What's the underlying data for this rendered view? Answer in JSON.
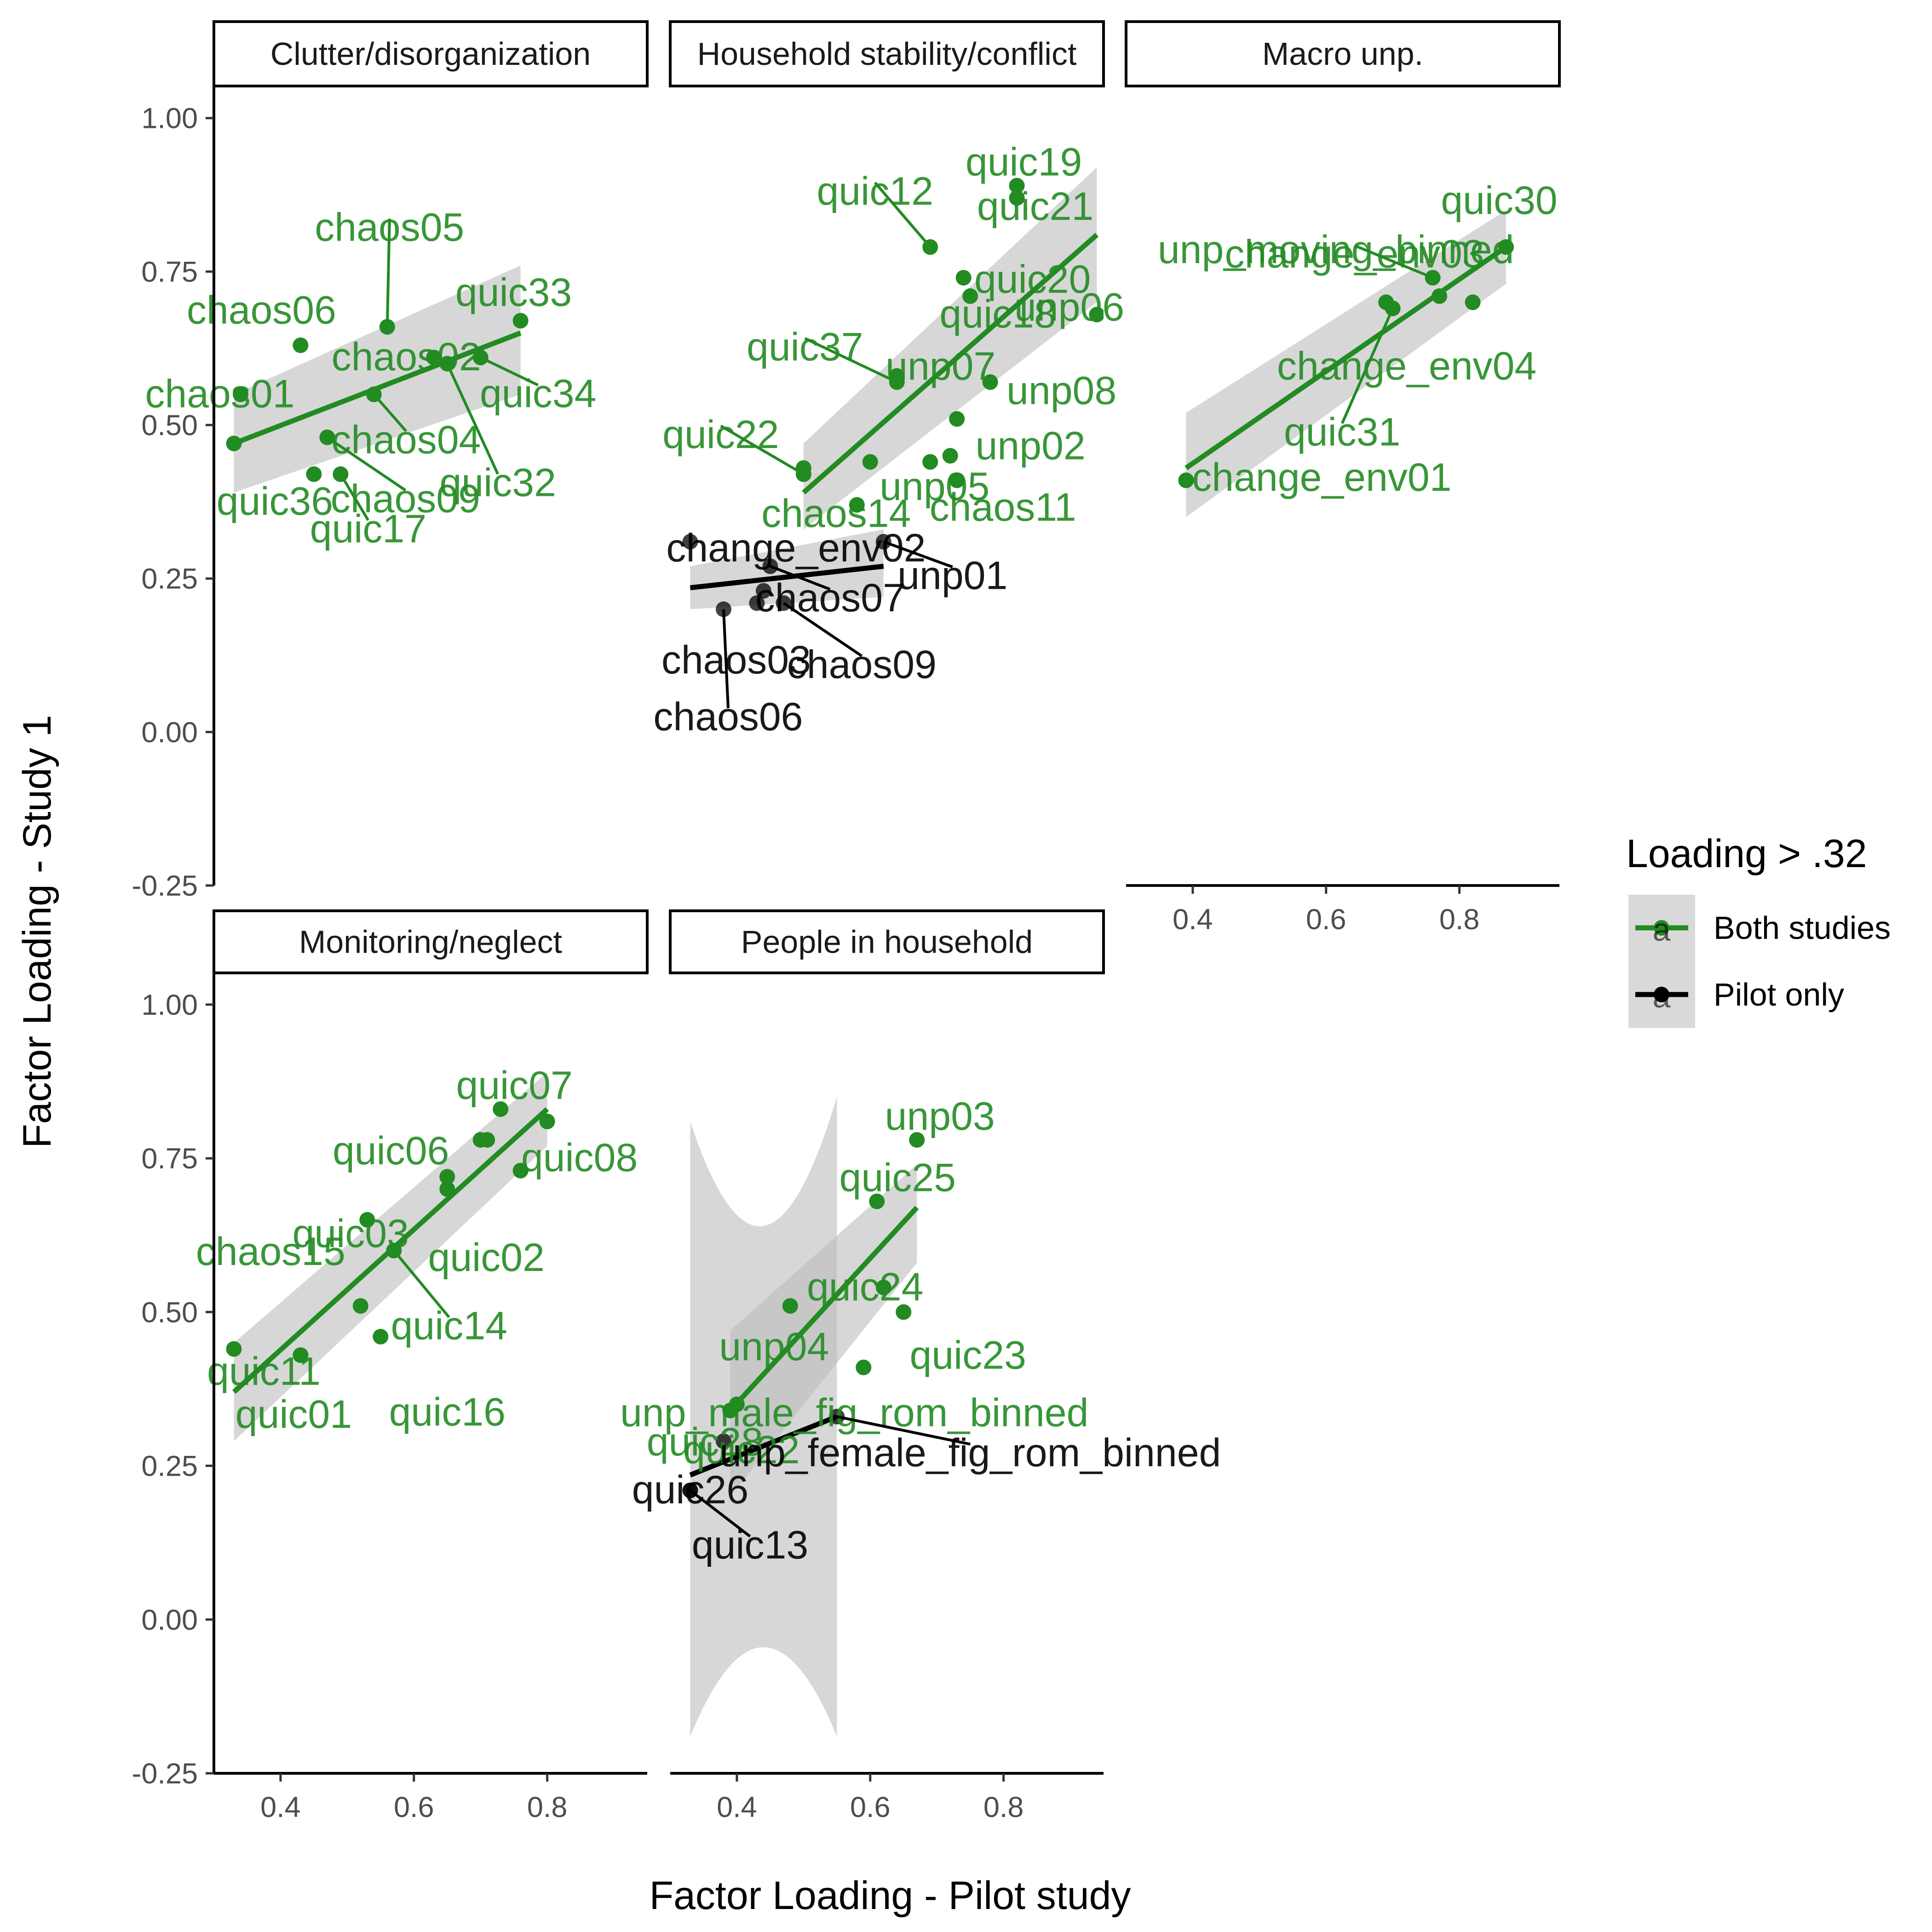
{
  "chart_data": {
    "type": "scatter",
    "xlabel": "Factor Loading - Pilot study",
    "ylabel": "Factor Loading - Study 1",
    "xlim": [
      0.3,
      0.95
    ],
    "ylim": [
      -0.25,
      1.05
    ],
    "x_ticks": [
      "0.4",
      "0.6",
      "0.8"
    ],
    "y_ticks": [
      "-0.25",
      "0.00",
      "0.25",
      "0.50",
      "0.75",
      "1.00"
    ],
    "legend": {
      "title": "Loading > .32",
      "placement": "right",
      "entries": [
        {
          "key": "both",
          "label": "Both studies",
          "color": "#228b22"
        },
        {
          "key": "pilot",
          "label": "Pilot only",
          "color": "#000000"
        }
      ],
      "key_glyph": "a"
    },
    "colors": {
      "both": "#228b22",
      "pilot": "#000000",
      "ribbon": "#bdbdbd"
    },
    "panels": [
      {
        "title": "Clutter/disorganization",
        "fits": [
          {
            "group": "both",
            "x": [
              0.33,
              0.76
            ],
            "y": [
              0.47,
              0.65
            ],
            "band_lower": [
              0.39,
              0.55
            ],
            "band_upper": [
              0.55,
              0.76
            ]
          }
        ],
        "points": [
          {
            "label": "chaos05",
            "x": 0.56,
            "y": 0.66,
            "group": "both"
          },
          {
            "label": "chaos06",
            "x": 0.43,
            "y": 0.63,
            "group": "both"
          },
          {
            "label": "chaos02",
            "x": 0.63,
            "y": 0.61,
            "group": "both"
          },
          {
            "label": "chaos01",
            "x": 0.34,
            "y": 0.55,
            "group": "both"
          },
          {
            "label": "chaos04",
            "x": 0.54,
            "y": 0.55,
            "group": "both"
          },
          {
            "label": "chaos09",
            "x": 0.47,
            "y": 0.48,
            "group": "both"
          },
          {
            "label": "quic33",
            "x": 0.76,
            "y": 0.67,
            "group": "both"
          },
          {
            "label": "quic34",
            "x": 0.7,
            "y": 0.61,
            "group": "both"
          },
          {
            "label": "quic32",
            "x": 0.65,
            "y": 0.6,
            "group": "both"
          },
          {
            "label": "quic36",
            "x": 0.45,
            "y": 0.42,
            "group": "both"
          },
          {
            "label": "quic17",
            "x": 0.49,
            "y": 0.42,
            "group": "both"
          },
          {
            "label": "",
            "x": 0.33,
            "y": 0.47,
            "group": "both"
          }
        ]
      },
      {
        "title": "Household stability/conflict",
        "fits": [
          {
            "group": "both",
            "x": [
              0.5,
              0.94
            ],
            "y": [
              0.39,
              0.81
            ],
            "band_lower": [
              0.33,
              0.7
            ],
            "band_upper": [
              0.47,
              0.92
            ]
          },
          {
            "group": "pilot",
            "x": [
              0.33,
              0.62
            ],
            "y": [
              0.235,
              0.27
            ],
            "band_lower": [
              0.2,
              0.22
            ],
            "band_upper": [
              0.27,
              0.33
            ]
          }
        ],
        "points": [
          {
            "label": "quic12",
            "x": 0.69,
            "y": 0.79,
            "group": "both"
          },
          {
            "label": "quic19",
            "x": 0.82,
            "y": 0.89,
            "group": "both"
          },
          {
            "label": "quic21",
            "x": 0.82,
            "y": 0.87,
            "group": "both"
          },
          {
            "label": "quic20",
            "x": 0.74,
            "y": 0.74,
            "group": "both"
          },
          {
            "label": "unp06",
            "x": 0.94,
            "y": 0.68,
            "group": "both"
          },
          {
            "label": "quic18",
            "x": 0.75,
            "y": 0.71,
            "group": "both"
          },
          {
            "label": "quic37",
            "x": 0.64,
            "y": 0.57,
            "group": "both"
          },
          {
            "label": "unp07",
            "x": 0.64,
            "y": 0.58,
            "group": "both"
          },
          {
            "label": "unp08",
            "x": 0.78,
            "y": 0.57,
            "group": "both"
          },
          {
            "label": "unp05",
            "x": 0.6,
            "y": 0.44,
            "group": "both"
          },
          {
            "label": "unp02",
            "x": 0.73,
            "y": 0.51,
            "group": "both"
          },
          {
            "label": "quic22",
            "x": 0.5,
            "y": 0.42,
            "group": "both"
          },
          {
            "label": "chaos14",
            "x": 0.58,
            "y": 0.37,
            "group": "both"
          },
          {
            "label": "chaos11",
            "x": 0.73,
            "y": 0.41,
            "group": "both"
          },
          {
            "label": "",
            "x": 0.69,
            "y": 0.44,
            "group": "both"
          },
          {
            "label": "",
            "x": 0.72,
            "y": 0.45,
            "group": "both"
          },
          {
            "label": "",
            "x": 0.5,
            "y": 0.43,
            "group": "both"
          },
          {
            "label": "change_env02",
            "x": 0.33,
            "y": 0.31,
            "group": "pilot"
          },
          {
            "label": "unp01",
            "x": 0.62,
            "y": 0.31,
            "group": "pilot"
          },
          {
            "label": "chaos07",
            "x": 0.45,
            "y": 0.27,
            "group": "pilot"
          },
          {
            "label": "chaos09",
            "x": 0.47,
            "y": 0.21,
            "group": "pilot"
          },
          {
            "label": "chaos03",
            "x": 0.43,
            "y": 0.21,
            "group": "pilot"
          },
          {
            "label": "chaos06",
            "x": 0.38,
            "y": 0.2,
            "group": "pilot"
          },
          {
            "label": "",
            "x": 0.44,
            "y": 0.23,
            "group": "pilot"
          }
        ]
      },
      {
        "title": "Macro unp.",
        "fits": [
          {
            "group": "both",
            "x": [
              0.39,
              0.87
            ],
            "y": [
              0.43,
              0.79
            ],
            "band_lower": [
              0.35,
              0.73
            ],
            "band_upper": [
              0.52,
              0.85
            ]
          }
        ],
        "points": [
          {
            "label": "change_env03",
            "x": 0.76,
            "y": 0.74,
            "group": "both"
          },
          {
            "label": "quic30",
            "x": 0.87,
            "y": 0.79,
            "group": "both"
          },
          {
            "label": "unp_moving_binned",
            "x": 0.77,
            "y": 0.71,
            "group": "both"
          },
          {
            "label": "change_env04",
            "x": 0.69,
            "y": 0.7,
            "group": "both"
          },
          {
            "label": "quic31",
            "x": 0.7,
            "y": 0.69,
            "group": "both"
          },
          {
            "label": "change_env01",
            "x": 0.39,
            "y": 0.41,
            "group": "both"
          },
          {
            "label": "",
            "x": 0.82,
            "y": 0.7,
            "group": "both"
          }
        ]
      },
      {
        "title": "Monitoring/neglect",
        "fits": [
          {
            "group": "both",
            "x": [
              0.33,
              0.8
            ],
            "y": [
              0.37,
              0.83
            ],
            "band_lower": [
              0.29,
              0.77
            ],
            "band_upper": [
              0.45,
              0.89
            ]
          }
        ],
        "points": [
          {
            "label": "quic07",
            "x": 0.73,
            "y": 0.83,
            "group": "both"
          },
          {
            "label": "quic06",
            "x": 0.7,
            "y": 0.78,
            "group": "both"
          },
          {
            "label": "quic08",
            "x": 0.8,
            "y": 0.81,
            "group": "both"
          },
          {
            "label": "quic03",
            "x": 0.65,
            "y": 0.72,
            "group": "both"
          },
          {
            "label": "quic02",
            "x": 0.65,
            "y": 0.7,
            "group": "both"
          },
          {
            "label": "chaos15",
            "x": 0.53,
            "y": 0.65,
            "group": "both"
          },
          {
            "label": "quic14",
            "x": 0.57,
            "y": 0.6,
            "group": "both"
          },
          {
            "label": "quic11",
            "x": 0.33,
            "y": 0.44,
            "group": "both"
          },
          {
            "label": "quic01",
            "x": 0.43,
            "y": 0.43,
            "group": "both"
          },
          {
            "label": "quic16",
            "x": 0.55,
            "y": 0.46,
            "group": "both"
          },
          {
            "label": "",
            "x": 0.52,
            "y": 0.51,
            "group": "both"
          },
          {
            "label": "",
            "x": 0.76,
            "y": 0.73,
            "group": "both"
          },
          {
            "label": "",
            "x": 0.71,
            "y": 0.78,
            "group": "both"
          }
        ]
      },
      {
        "title": "People in household",
        "fits": [
          {
            "group": "both",
            "x": [
              0.39,
              0.67
            ],
            "y": [
              0.34,
              0.67
            ],
            "band_lower": [
              0.2,
              0.58
            ],
            "band_upper": [
              0.47,
              0.74
            ]
          },
          {
            "group": "pilot",
            "x": [
              0.33,
              0.55
            ],
            "y": [
              0.235,
              0.33
            ],
            "band_lower": [
              -0.19,
              -0.19
            ],
            "band_upper": [
              0.81,
              0.85
            ]
          }
        ],
        "points": [
          {
            "label": "unp03",
            "x": 0.67,
            "y": 0.78,
            "group": "both"
          },
          {
            "label": "quic25",
            "x": 0.61,
            "y": 0.68,
            "group": "both"
          },
          {
            "label": "quic24",
            "x": 0.62,
            "y": 0.54,
            "group": "both"
          },
          {
            "label": "quic23",
            "x": 0.65,
            "y": 0.5,
            "group": "both"
          },
          {
            "label": "unp04",
            "x": 0.48,
            "y": 0.51,
            "group": "both"
          },
          {
            "label": "quic28",
            "x": 0.39,
            "y": 0.34,
            "group": "both"
          },
          {
            "label": "unp_male_fig_rom_binned",
            "x": 0.59,
            "y": 0.41,
            "group": "both"
          },
          {
            "label": "quic22",
            "x": 0.4,
            "y": 0.35,
            "group": "both"
          },
          {
            "label": "quic26",
            "x": 0.33,
            "y": 0.21,
            "group": "pilot"
          },
          {
            "label": "unp_female_fig_rom_binned",
            "x": 0.55,
            "y": 0.33,
            "group": "pilot"
          },
          {
            "label": "quic13",
            "x": 0.33,
            "y": 0.21,
            "group": "pilot"
          },
          {
            "label": "",
            "x": 0.38,
            "y": 0.29,
            "group": "pilot"
          }
        ]
      }
    ]
  }
}
